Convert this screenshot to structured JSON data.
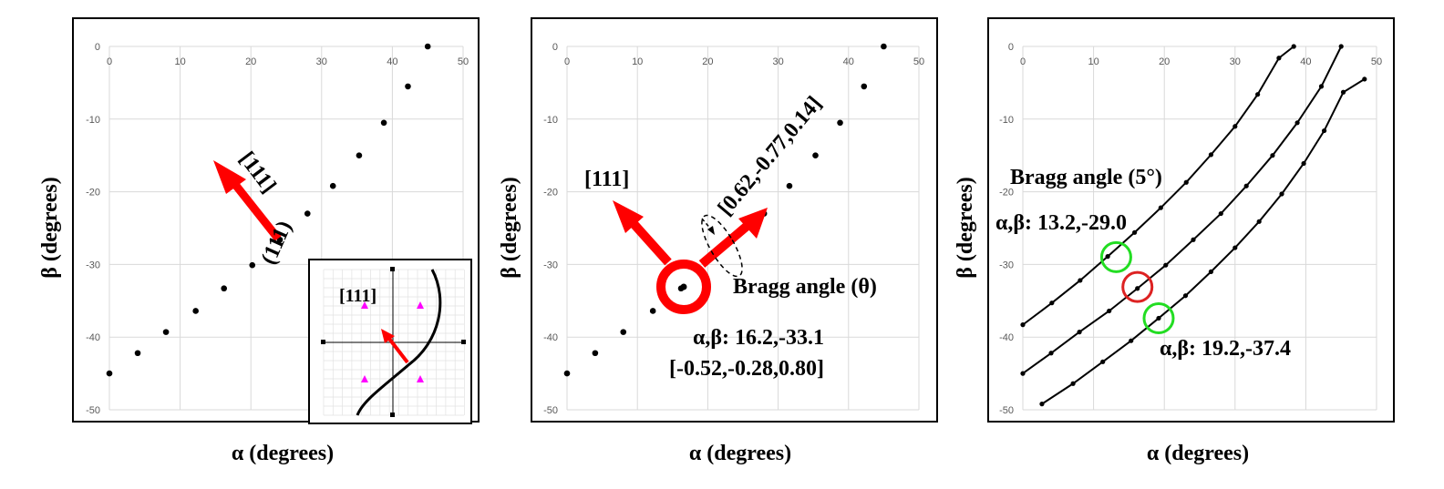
{
  "chart_data": [
    {
      "type": "scatter",
      "xlabel": "α (degrees)",
      "ylabel": "β (degrees)",
      "xlim": [
        0,
        50
      ],
      "ylim": [
        -50,
        0
      ],
      "x_ticks": [
        "0",
        "10",
        "20",
        "30",
        "40",
        "50"
      ],
      "y_ticks": [
        "0",
        "-10",
        "-20",
        "-30",
        "-40",
        "-50"
      ],
      "grid": true,
      "series": [
        {
          "x": [
            0,
            4,
            8,
            12.2,
            16.2,
            20.2,
            24.1,
            28,
            31.6,
            35.3,
            38.8,
            42.2,
            45
          ],
          "y": [
            -45,
            -42.2,
            -39.3,
            -36.4,
            -33.3,
            -30.1,
            -26.6,
            -23,
            -19.2,
            -15,
            -10.5,
            -5.5,
            0
          ]
        }
      ],
      "annotations": {
        "arrow_label": "[111]",
        "plane_label": "(111)",
        "inset_label": "[111]"
      }
    },
    {
      "type": "scatter",
      "xlabel": "α (degrees)",
      "ylabel": "β (degrees)",
      "xlim": [
        0,
        50
      ],
      "ylim": [
        -50,
        0
      ],
      "x_ticks": [
        "0",
        "10",
        "20",
        "30",
        "40",
        "50"
      ],
      "y_ticks": [
        "0",
        "-10",
        "-20",
        "-30",
        "-40",
        "-50"
      ],
      "grid": true,
      "series": [
        {
          "x": [
            0,
            4,
            8,
            12.2,
            16.2,
            28,
            31.6,
            35.3,
            38.8,
            42.2,
            45
          ],
          "y": [
            -45,
            -42.2,
            -39.3,
            -36.4,
            -33.3,
            -23,
            -19.2,
            -15,
            -10.5,
            -5.5,
            0
          ]
        }
      ],
      "annotations": {
        "arrow1_label": "[111]",
        "arrow2_label": "[0.62,-0.77,0.14]",
        "bragg_label": "Bragg angle (θ)",
        "point_coords": "α,β: 16.2,-33.1",
        "point_vector": "[-0.52,-0.28,0.80]"
      }
    },
    {
      "type": "line",
      "xlabel": "α (degrees)",
      "ylabel": "β (degrees)",
      "xlim": [
        0,
        50
      ],
      "ylim": [
        -50,
        0
      ],
      "x_ticks": [
        "0",
        "10",
        "20",
        "30",
        "40",
        "50"
      ],
      "y_ticks": [
        "0",
        "-10",
        "-20",
        "-30",
        "-40",
        "-50"
      ],
      "grid": true,
      "series": [
        {
          "x": [
            0,
            4.1,
            8.1,
            12,
            15.8,
            19.5,
            23.1,
            26.6,
            30,
            33.2,
            36.2,
            38.3
          ],
          "y": [
            -38.3,
            -35.3,
            -32.2,
            -28.9,
            -25.6,
            -22.2,
            -18.7,
            -14.9,
            -11,
            -6.6,
            -1.6,
            0
          ]
        },
        {
          "x": [
            0,
            4,
            8,
            12.2,
            16.2,
            20.2,
            24.1,
            28,
            31.6,
            35.3,
            38.8,
            42.2,
            45
          ],
          "y": [
            -45,
            -42.2,
            -39.3,
            -36.4,
            -33.3,
            -30.1,
            -26.6,
            -23,
            -19.2,
            -15,
            -10.5,
            -5.5,
            0
          ]
        },
        {
          "x": [
            2.7,
            7.1,
            11.3,
            15.3,
            19.2,
            23,
            26.6,
            30,
            33.4,
            36.6,
            39.7,
            42.6,
            45.3,
            48.3
          ],
          "y": [
            -49.2,
            -46.4,
            -43.4,
            -40.5,
            -37.4,
            -34.3,
            -31,
            -27.7,
            -24.1,
            -20.3,
            -16.1,
            -11.6,
            -6.3,
            -4.5
          ]
        }
      ],
      "annotations": {
        "bragg_label": "Bragg angle (5°)",
        "upper_coords": "α,β: 13.2,-29.0",
        "lower_coords": "α,β: 19.2,-37.4"
      },
      "circles": [
        {
          "x": 13.2,
          "y": -29,
          "color": "#22dd22"
        },
        {
          "x": 16.2,
          "y": -33.1,
          "color": "#dd2222"
        },
        {
          "x": 19.2,
          "y": -37.4,
          "color": "#22dd22"
        }
      ]
    }
  ],
  "colors": {
    "arrow": "#ff0000",
    "inset_marker": "#ff00ff"
  }
}
